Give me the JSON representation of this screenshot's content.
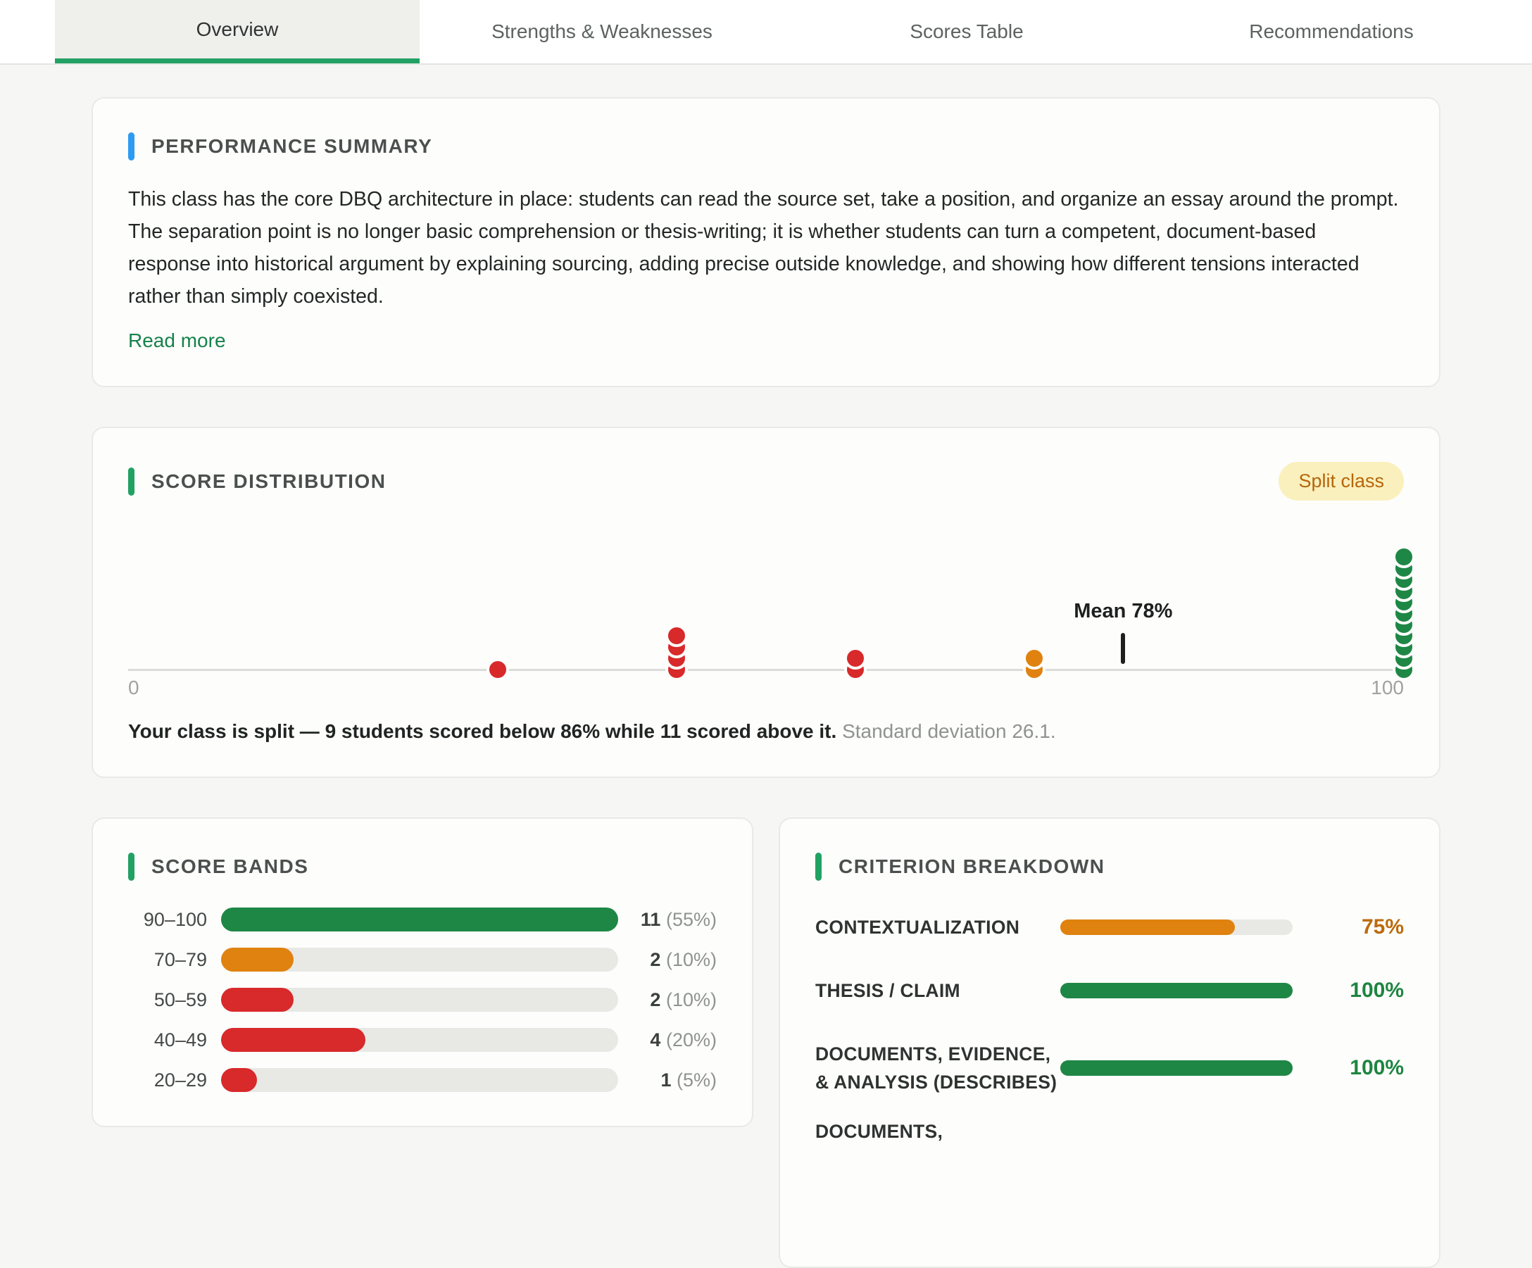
{
  "tabs": [
    {
      "label": "Overview",
      "active": true
    },
    {
      "label": "Strengths & Weaknesses",
      "active": false
    },
    {
      "label": "Scores Table",
      "active": false
    },
    {
      "label": "Recommendations",
      "active": false
    }
  ],
  "performance_summary": {
    "title": "PERFORMANCE SUMMARY",
    "body": "This class has the core DBQ architecture in place: students can read the source set, take a position, and organize an essay around the prompt. The separation point is no longer basic comprehension or thesis-writing; it is whether students can turn a competent, document-based response into historical argument by explaining sourcing, adding precise outside knowledge, and showing how different tensions interacted rather than simply coexisted.",
    "read_more_label": "Read more"
  },
  "score_distribution": {
    "title": "SCORE DISTRIBUTION",
    "badge": "Split class",
    "axis_min_label": "0",
    "axis_max_label": "100",
    "mean_label": "Mean 78%",
    "caption_bold": "Your class is split — 9 students scored below 86% while 11 scored above it.",
    "caption_gray": "Standard deviation 26.1."
  },
  "score_bands": {
    "title": "SCORE BANDS",
    "max_count": 11,
    "rows": [
      {
        "band": "90–100",
        "count": 11,
        "pct_label": "(55%)",
        "color": "green"
      },
      {
        "band": "70–79",
        "count": 2,
        "pct_label": "(10%)",
        "color": "orange"
      },
      {
        "band": "50–59",
        "count": 2,
        "pct_label": "(10%)",
        "color": "red"
      },
      {
        "band": "40–49",
        "count": 4,
        "pct_label": "(20%)",
        "color": "red"
      },
      {
        "band": "20–29",
        "count": 1,
        "pct_label": "(5%)",
        "color": "red"
      }
    ]
  },
  "criterion_breakdown": {
    "title": "CRITERION BREAKDOWN",
    "rows": [
      {
        "label": "CONTEXTUALIZATION",
        "value": 75,
        "value_label": "75%",
        "color": "orange"
      },
      {
        "label": "THESIS / CLAIM",
        "value": 100,
        "value_label": "100%",
        "color": "green"
      },
      {
        "label": "DOCUMENTS, EVIDENCE, & ANALYSIS (DESCRIBES)",
        "value": 100,
        "value_label": "100%",
        "color": "green"
      },
      {
        "label": "DOCUMENTS,",
        "value": null,
        "value_label": "",
        "color": ""
      }
    ]
  },
  "colors": {
    "green": "#1e8745",
    "red": "#d8292b",
    "orange": "#e0820f",
    "blue": "#2d9bf3",
    "accent_green": "#22a164",
    "badge_bg": "#faf0bd",
    "badge_text": "#b5660c"
  },
  "chart_data": [
    {
      "type": "scatter",
      "title": "Score distribution dot plot (each dot = one student)",
      "xlim": [
        0,
        100
      ],
      "x_tick_labels": [
        "0",
        "100"
      ],
      "mean": 78,
      "std_dev": 26.1,
      "annotation": "Mean 78%",
      "groups": [
        {
          "x": 29,
          "count": 1,
          "color": "red"
        },
        {
          "x": 43,
          "count": 4,
          "color": "red"
        },
        {
          "x": 57,
          "count": 2,
          "color": "red"
        },
        {
          "x": 71,
          "count": 2,
          "color": "orange"
        },
        {
          "x": 100,
          "count": 11,
          "color": "green"
        }
      ]
    },
    {
      "type": "bar",
      "orientation": "horizontal",
      "title": "Score bands",
      "categories": [
        "90–100",
        "70–79",
        "50–59",
        "40–49",
        "20–29"
      ],
      "values": [
        11,
        2,
        2,
        4,
        1
      ],
      "value_labels": [
        "11 (55%)",
        "2 (10%)",
        "2 (10%)",
        "4 (20%)",
        "1 (5%)"
      ],
      "colors": [
        "green",
        "orange",
        "red",
        "red",
        "red"
      ],
      "xlim": [
        0,
        11
      ]
    },
    {
      "type": "bar",
      "orientation": "horizontal",
      "title": "Criterion breakdown",
      "categories": [
        "CONTEXTUALIZATION",
        "THESIS / CLAIM",
        "DOCUMENTS, EVIDENCE, & ANALYSIS (DESCRIBES)"
      ],
      "values": [
        75,
        100,
        100
      ],
      "value_labels": [
        "75%",
        "100%",
        "100%"
      ],
      "colors": [
        "orange",
        "green",
        "green"
      ],
      "xlim": [
        0,
        100
      ]
    }
  ]
}
